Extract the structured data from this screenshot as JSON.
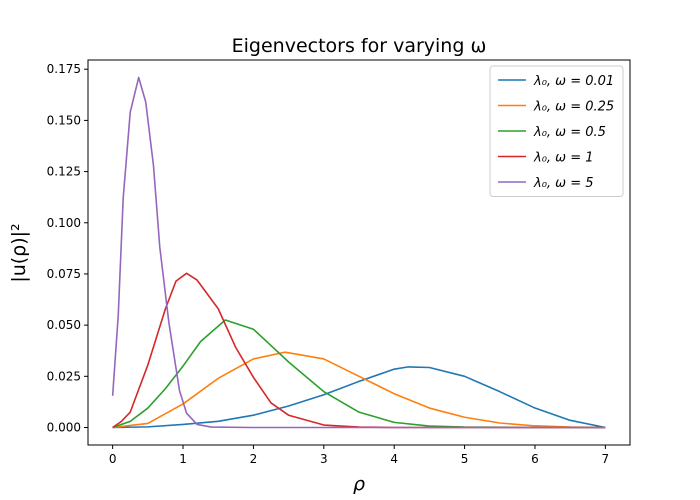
{
  "chart_data": {
    "type": "line",
    "title": "Eigenvectors for varying ω",
    "xlabel": "ρ",
    "ylabel": "|u(ρ)|²",
    "xlim": [
      -0.35,
      7.35
    ],
    "ylim": [
      -0.00855,
      0.1795
    ],
    "xticks": [
      0,
      1,
      2,
      3,
      4,
      5,
      6,
      7
    ],
    "xtick_labels": [
      "0",
      "1",
      "2",
      "3",
      "4",
      "5",
      "6",
      "7"
    ],
    "yticks": [
      0.0,
      0.025,
      0.05,
      0.075,
      0.1,
      0.125,
      0.15,
      0.175
    ],
    "ytick_labels": [
      "0.000",
      "0.025",
      "0.050",
      "0.075",
      "0.100",
      "0.125",
      "0.150",
      "0.175"
    ],
    "grid": false,
    "legend_position": "top-right",
    "series": [
      {
        "name": "λ₀, ω = 0.01",
        "color": "#1f77b4",
        "x": [
          0,
          0.5,
          1,
          1.5,
          2,
          2.5,
          3,
          3.5,
          4,
          4.2,
          4.5,
          5,
          5.5,
          6,
          6.5,
          7
        ],
        "y": [
          0.0,
          0.0003,
          0.0015,
          0.003,
          0.006,
          0.0105,
          0.016,
          0.0225,
          0.0285,
          0.0296,
          0.0293,
          0.025,
          0.0175,
          0.0095,
          0.0035,
          0.0
        ]
      },
      {
        "name": "λ₀, ω = 0.25",
        "color": "#ff7f0e",
        "x": [
          0,
          0.5,
          1,
          1.5,
          2,
          2.45,
          3,
          3.5,
          4,
          4.5,
          5,
          5.5,
          6,
          6.5,
          7
        ],
        "y": [
          0.0,
          0.002,
          0.0115,
          0.024,
          0.0335,
          0.0368,
          0.0335,
          0.025,
          0.0165,
          0.0095,
          0.005,
          0.0022,
          0.0008,
          0.0002,
          0.0
        ]
      },
      {
        "name": "λ₀, ω = 0.5",
        "color": "#2ca02c",
        "x": [
          0,
          0.25,
          0.5,
          0.75,
          1,
          1.25,
          1.6,
          2,
          2.25,
          2.5,
          3,
          3.5,
          4,
          4.5,
          5,
          6,
          7
        ],
        "y": [
          0.0,
          0.003,
          0.0095,
          0.019,
          0.03,
          0.042,
          0.0525,
          0.048,
          0.04,
          0.032,
          0.0175,
          0.0075,
          0.0025,
          0.0007,
          0.0002,
          0.0,
          0.0
        ]
      },
      {
        "name": "λ₀, ω = 1",
        "color": "#d62728",
        "x": [
          0,
          0.125,
          0.25,
          0.5,
          0.75,
          0.9,
          1.05,
          1.2,
          1.5,
          1.75,
          2,
          2.25,
          2.5,
          3,
          3.5,
          4,
          5,
          7
        ],
        "y": [
          0.0,
          0.003,
          0.0075,
          0.0305,
          0.058,
          0.0715,
          0.0753,
          0.072,
          0.058,
          0.039,
          0.0245,
          0.012,
          0.006,
          0.0012,
          0.0002,
          0.0,
          0.0,
          0.0
        ]
      },
      {
        "name": "λ₀, ω = 5",
        "color": "#9467bd",
        "x": [
          0,
          0.08,
          0.15,
          0.25,
          0.37,
          0.47,
          0.58,
          0.67,
          0.8,
          0.95,
          1.05,
          1.2,
          1.4,
          2,
          3,
          4,
          5,
          6,
          7
        ],
        "y": [
          0.0155,
          0.055,
          0.112,
          0.154,
          0.171,
          0.159,
          0.128,
          0.088,
          0.051,
          0.018,
          0.007,
          0.0015,
          0.0002,
          0.0,
          0.0,
          0.0,
          0.0,
          0.0,
          0.0
        ]
      }
    ]
  }
}
